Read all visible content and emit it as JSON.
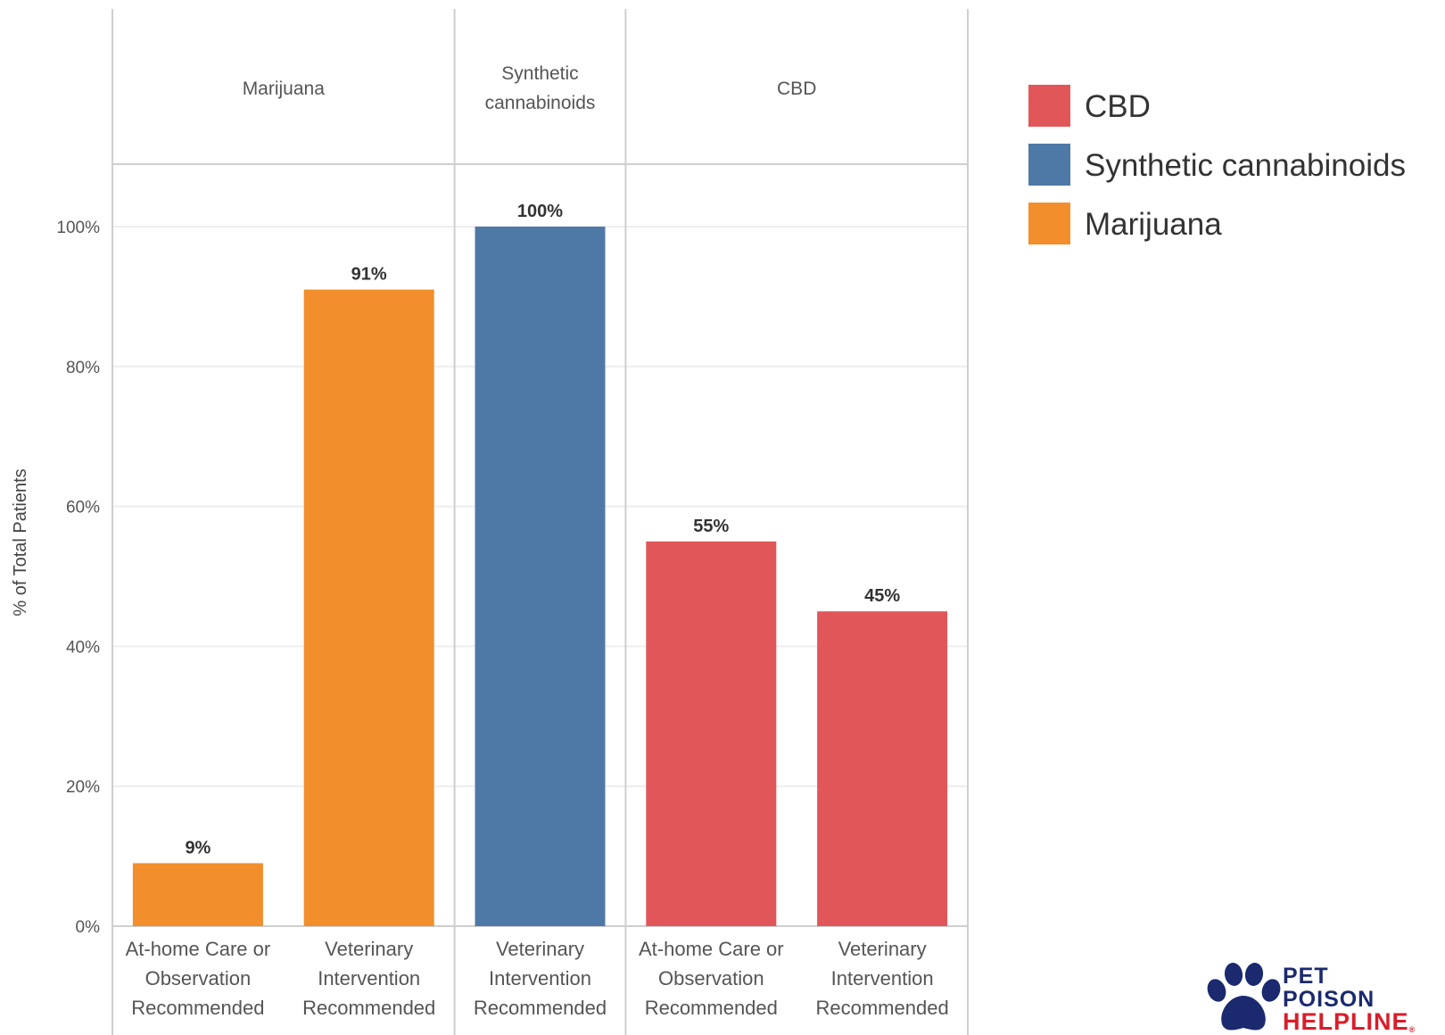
{
  "chart_data": {
    "type": "bar",
    "ylabel": "% of Total Patients",
    "ylim": [
      0,
      110
    ],
    "yticks": [
      0,
      20,
      40,
      60,
      80,
      100
    ],
    "ytick_labels": [
      "0%",
      "20%",
      "40%",
      "60%",
      "80%",
      "100%"
    ],
    "grid": true,
    "legend_position": "top-right",
    "panels": [
      {
        "name": "Marijuana",
        "header_lines": [
          "Marijuana"
        ],
        "color": "#f28e2b",
        "bars": [
          {
            "category": "At-home Care or Observation Recommended",
            "category_lines": [
              "At-home Care or",
              "Observation",
              "Recommended"
            ],
            "value": 9,
            "label": "9%"
          },
          {
            "category": "Veterinary Intervention Recommended",
            "category_lines": [
              "Veterinary",
              "Intervention",
              "Recommended"
            ],
            "value": 91,
            "label": "91%"
          }
        ]
      },
      {
        "name": "Synthetic cannabinoids",
        "header_lines": [
          "Synthetic",
          "cannabinoids"
        ],
        "color": "#4e79a7",
        "bars": [
          {
            "category": "Veterinary Intervention Recommended",
            "category_lines": [
              "Veterinary",
              "Intervention",
              "Recommended"
            ],
            "value": 100,
            "label": "100%"
          }
        ]
      },
      {
        "name": "CBD",
        "header_lines": [
          "CBD"
        ],
        "color": "#e15759",
        "bars": [
          {
            "category": "At-home Care or Observation Recommended",
            "category_lines": [
              "At-home Care or",
              "Observation",
              "Recommended"
            ],
            "value": 55,
            "label": "55%"
          },
          {
            "category": "Veterinary Intervention Recommended",
            "category_lines": [
              "Veterinary",
              "Intervention",
              "Recommended"
            ],
            "value": 45,
            "label": "45%"
          }
        ]
      }
    ],
    "legend": [
      {
        "label": "CBD",
        "color": "#e15759"
      },
      {
        "label": "Synthetic cannabinoids",
        "color": "#4e79a7"
      },
      {
        "label": "Marijuana",
        "color": "#f28e2b"
      }
    ]
  },
  "logo": {
    "line1": "PET",
    "line2": "POISON",
    "line3": "HELPLINE",
    "mark": "®",
    "icon": "paw-icon",
    "color_primary": "#1b2a6e",
    "color_accent": "#d81e2a"
  }
}
